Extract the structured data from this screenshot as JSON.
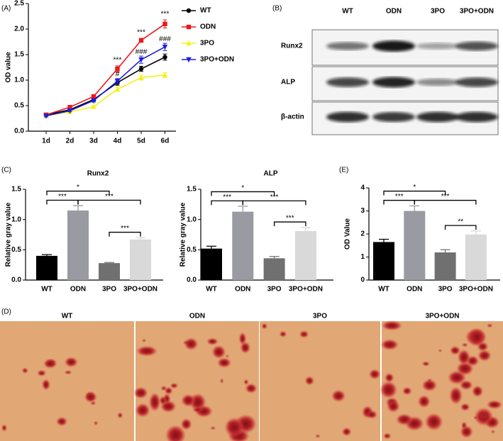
{
  "panel_labels": [
    "(A)",
    "(B)",
    "(C)",
    "(D)",
    "(E)"
  ],
  "chart_data": [
    {
      "type": "line",
      "ylabel": "OD value",
      "categories": [
        "1d",
        "2d",
        "3d",
        "4d",
        "5d",
        "6d"
      ],
      "ylim": [
        0,
        2.5
      ],
      "yticks": [
        {
          "value": 0,
          "label": "0.0"
        },
        0.5,
        {
          "value": 1,
          "label": "1.0"
        },
        1.5,
        {
          "value": 2,
          "label": "2.0"
        },
        2.5
      ],
      "series": [
        {
          "name": "WT",
          "color": "#000000",
          "marker": "circle",
          "values": [
            0.32,
            0.42,
            0.62,
            0.95,
            1.22,
            1.45
          ],
          "errors": [
            0.02,
            0.02,
            0.03,
            0.05,
            0.05,
            0.06
          ]
        },
        {
          "name": "ODN",
          "color": "#e8191b",
          "marker": "square",
          "values": [
            0.32,
            0.47,
            0.68,
            1.22,
            1.78,
            2.1
          ],
          "errors": [
            0.02,
            0.03,
            0.03,
            0.06,
            0.04,
            0.08
          ]
        },
        {
          "name": "3PO",
          "color": "#f2f21c",
          "marker": "triangle-up",
          "values": [
            0.3,
            0.38,
            0.48,
            0.82,
            1.05,
            1.1
          ],
          "errors": [
            0.02,
            0.02,
            0.02,
            0.04,
            0.05,
            0.05
          ]
        },
        {
          "name": "3PO+ODN",
          "color": "#1c1ce0",
          "marker": "triangle-down",
          "values": [
            0.3,
            0.4,
            0.6,
            0.98,
            1.4,
            1.65
          ],
          "errors": [
            0.02,
            0.02,
            0.03,
            0.05,
            0.07,
            0.07
          ]
        }
      ],
      "significance_top": [
        null,
        null,
        null,
        "***",
        "***",
        "***"
      ],
      "significance_bottom": [
        null,
        null,
        null,
        "#",
        "###",
        "###"
      ]
    },
    {
      "type": "bar",
      "title": "Runx2",
      "ylabel": "Relative gray value",
      "categories": [
        "WT",
        "ODN",
        "3PO",
        "3PO+ODN"
      ],
      "colors": [
        "#000000",
        "#9a9aa2",
        "#707070",
        "#d9d9d9"
      ],
      "values": [
        0.4,
        1.15,
        0.28,
        0.67
      ],
      "errors": [
        0.02,
        0.08,
        0.01,
        0.03
      ],
      "ylim": [
        0,
        1.5
      ],
      "yticks": [
        {
          "value": 0,
          "label": "0.0"
        },
        0.5,
        {
          "value": 1,
          "label": "1.0"
        },
        1.5
      ],
      "comparisons": [
        {
          "from": "WT",
          "to": "ODN",
          "label": "***"
        },
        {
          "from": "3PO",
          "to": "3PO+ODN",
          "label": "***"
        },
        {
          "from": "ODN",
          "to": "3PO+ODN",
          "label": "***"
        },
        {
          "from": "WT",
          "to": "3PO",
          "label": "*"
        }
      ]
    },
    {
      "type": "bar",
      "title": "ALP",
      "ylabel": "Relative gray value",
      "categories": [
        "WT",
        "ODN",
        "3PO",
        "3PO+ODN"
      ],
      "colors": [
        "#000000",
        "#9a9aa2",
        "#707070",
        "#d9d9d9"
      ],
      "values": [
        0.52,
        1.13,
        0.36,
        0.81
      ],
      "errors": [
        0.04,
        0.09,
        0.03,
        0.06
      ],
      "ylim": [
        0,
        1.5
      ],
      "yticks": [
        {
          "value": 0,
          "label": "0.0"
        },
        0.5,
        {
          "value": 1,
          "label": "1.0"
        },
        1.5
      ],
      "comparisons": [
        {
          "from": "WT",
          "to": "ODN",
          "label": "***"
        },
        {
          "from": "3PO",
          "to": "3PO+ODN",
          "label": "***"
        },
        {
          "from": "ODN",
          "to": "3PO+ODN",
          "label": "***"
        },
        {
          "from": "WT",
          "to": "3PO",
          "label": "*"
        }
      ]
    },
    {
      "type": "bar",
      "ylabel": "OD Value",
      "categories": [
        "WT",
        "ODN",
        "3PO",
        "3PO+ODN"
      ],
      "colors": [
        "#000000",
        "#9a9aa2",
        "#707070",
        "#d9d9d9"
      ],
      "values": [
        1.65,
        3.0,
        1.2,
        1.98
      ],
      "errors": [
        0.12,
        0.22,
        0.12,
        0.15
      ],
      "ylim": [
        0,
        4
      ],
      "yticks": [
        0,
        1,
        2,
        3,
        4
      ],
      "comparisons": [
        {
          "from": "WT",
          "to": "ODN",
          "label": "***"
        },
        {
          "from": "3PO",
          "to": "3PO+ODN",
          "label": "**"
        },
        {
          "from": "ODN",
          "to": "3PO+ODN",
          "label": "***"
        },
        {
          "from": "WT",
          "to": "3PO",
          "label": "*"
        }
      ]
    }
  ],
  "blot": {
    "lanes": [
      "WT",
      "ODN",
      "3PO",
      "3PO+ODN"
    ],
    "rows": [
      "Runx2",
      "ALP",
      "β-actin"
    ]
  },
  "micrographs": {
    "labels": [
      "WT",
      "ODN",
      "3PO",
      "3PO+ODN"
    ]
  }
}
